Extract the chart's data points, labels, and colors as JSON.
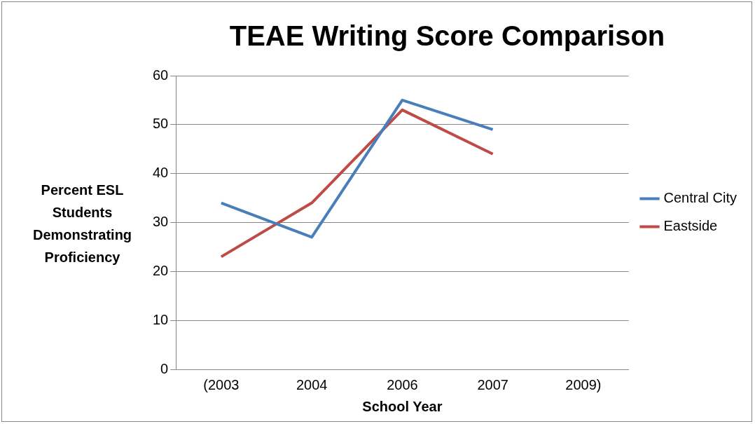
{
  "chart_data": {
    "type": "line",
    "title": "TEAE Writing Score Comparison",
    "xlabel": "School Year",
    "ylabel": "Percent ESL Students Demonstrating Proficiency",
    "categories": [
      "(2003",
      "2004",
      "2006",
      "2007",
      "2009)"
    ],
    "series": [
      {
        "name": "Central City",
        "color": "#4a7ebb",
        "values": [
          34,
          27,
          55,
          49,
          null
        ]
      },
      {
        "name": "Eastside",
        "color": "#be4b48",
        "values": [
          23,
          34,
          53,
          44,
          null
        ]
      }
    ],
    "ylim": [
      0,
      60
    ],
    "yticks": [
      0,
      10,
      20,
      30,
      40,
      50,
      60
    ],
    "grid": "y",
    "legend": "right",
    "marker": "none",
    "line_style": "solid"
  }
}
